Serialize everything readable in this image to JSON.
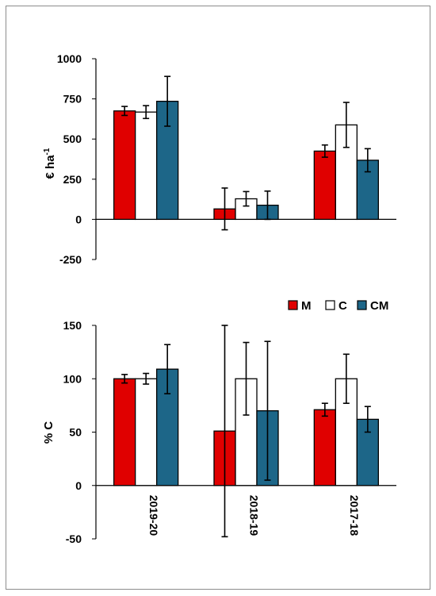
{
  "chart_data": [
    {
      "type": "bar",
      "categories": [
        "2019-20",
        "2018-19",
        "2017-18"
      ],
      "ylabel": "€ ha",
      "ylabel_sup": "-1",
      "ylim": [
        -250,
        1000
      ],
      "yticks": [
        "1000",
        "750",
        "500",
        "250",
        "0",
        "-250"
      ],
      "ytick_values": [
        1000,
        750,
        500,
        250,
        0,
        -250
      ],
      "series": [
        {
          "name": "M",
          "color": "#e00000",
          "values": [
            675,
            65,
            425
          ],
          "errors": [
            28,
            130,
            38
          ]
        },
        {
          "name": "C",
          "color": "#ffffff",
          "values": [
            668,
            128,
            588
          ],
          "errors": [
            40,
            45,
            140
          ]
        },
        {
          "name": "CM",
          "color": "#1d6688",
          "values": [
            735,
            88,
            368
          ],
          "errors": [
            155,
            88,
            72
          ]
        }
      ],
      "grid": false
    },
    {
      "type": "bar",
      "categories": [
        "2019-20",
        "2018-19",
        "2017-18"
      ],
      "ylabel": "% C",
      "ylim": [
        -50,
        150
      ],
      "yticks": [
        "150",
        "100",
        "50",
        "0",
        "-50"
      ],
      "ytick_values": [
        150,
        100,
        50,
        0,
        -50
      ],
      "series": [
        {
          "name": "M",
          "color": "#e00000",
          "values": [
            100,
            51,
            71
          ],
          "errors": [
            4,
            99,
            6
          ]
        },
        {
          "name": "C",
          "color": "#ffffff",
          "values": [
            100,
            100,
            100
          ],
          "errors": [
            5,
            34,
            23
          ]
        },
        {
          "name": "CM",
          "color": "#1d6688",
          "values": [
            109,
            70,
            62
          ],
          "errors": [
            23,
            65,
            12
          ]
        }
      ],
      "legend": {
        "position": "top-right",
        "labels": [
          "M",
          "C",
          "CM"
        ]
      },
      "grid": false
    }
  ]
}
